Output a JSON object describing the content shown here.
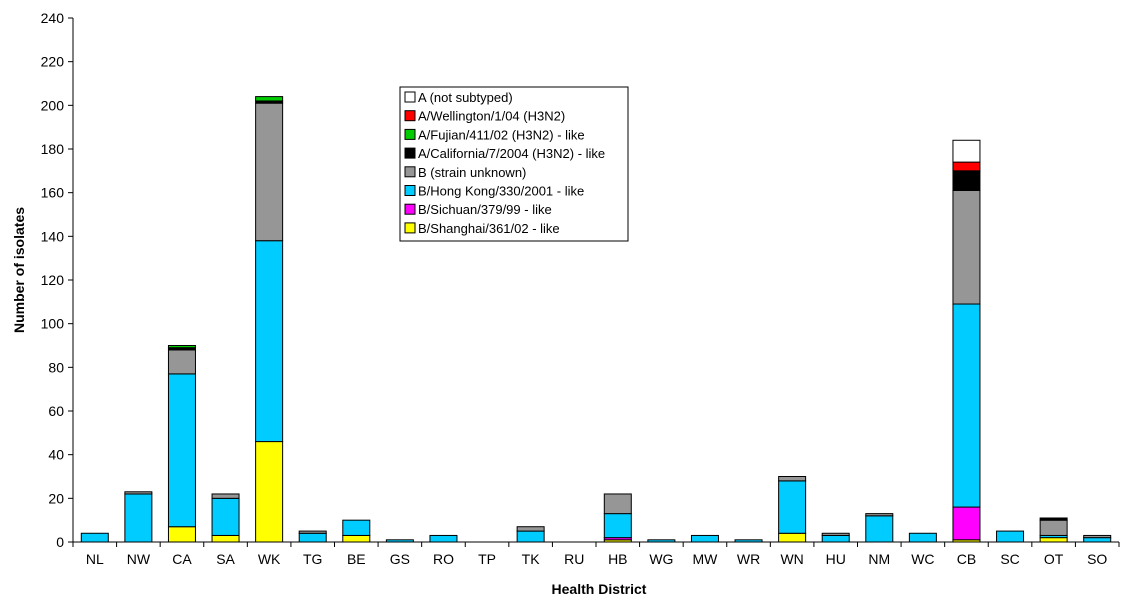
{
  "chart_data": {
    "type": "bar",
    "stacked": true,
    "title": "",
    "xlabel": "Health District",
    "ylabel": "Number of isolates",
    "ylim": [
      0,
      240
    ],
    "ytick_step": 20,
    "grid": false,
    "legend_position": "top-center",
    "categories": [
      "NL",
      "NW",
      "CA",
      "SA",
      "WK",
      "TG",
      "BE",
      "GS",
      "RO",
      "TP",
      "TK",
      "RU",
      "HB",
      "WG",
      "MW",
      "WR",
      "WN",
      "HU",
      "NM",
      "WC",
      "CB",
      "SC",
      "OT",
      "SO"
    ],
    "series": [
      {
        "name": "B/Shanghai/361/02 - like",
        "color": "#ffff00",
        "values": [
          0,
          0,
          7,
          3,
          46,
          0,
          3,
          0,
          0,
          0,
          0,
          0,
          1,
          0,
          0,
          0,
          4,
          0,
          0,
          0,
          1,
          0,
          2,
          0
        ]
      },
      {
        "name": "B/Sichuan/379/99 - like",
        "color": "#ff00ff",
        "values": [
          0,
          0,
          0,
          0,
          0,
          0,
          0,
          0,
          0,
          0,
          0,
          0,
          1,
          0,
          0,
          0,
          0,
          0,
          0,
          0,
          15,
          0,
          0,
          0
        ]
      },
      {
        "name": "B/Hong Kong/330/2001 - like",
        "color": "#00ccff",
        "values": [
          4,
          22,
          70,
          17,
          92,
          4,
          7,
          1,
          3,
          0,
          5,
          0,
          11,
          1,
          3,
          1,
          24,
          3,
          12,
          4,
          93,
          5,
          1,
          2
        ]
      },
      {
        "name": "B (strain unknown)",
        "color": "#969696",
        "values": [
          0,
          1,
          11,
          2,
          63,
          1,
          0,
          0,
          0,
          0,
          2,
          0,
          9,
          0,
          0,
          0,
          2,
          1,
          1,
          0,
          52,
          0,
          7,
          1
        ]
      },
      {
        "name": "A/California/7/2004 (H3N2) - like",
        "color": "#000000",
        "values": [
          0,
          0,
          1,
          0,
          1,
          0,
          0,
          0,
          0,
          0,
          0,
          0,
          0,
          0,
          0,
          0,
          0,
          0,
          0,
          0,
          9,
          0,
          1,
          0
        ]
      },
      {
        "name": "A/Fujian/411/02 (H3N2) - like",
        "color": "#00cc00",
        "values": [
          0,
          0,
          1,
          0,
          2,
          0,
          0,
          0,
          0,
          0,
          0,
          0,
          0,
          0,
          0,
          0,
          0,
          0,
          0,
          0,
          0,
          0,
          0,
          0
        ]
      },
      {
        "name": "A/Wellington/1/04 (H3N2)",
        "color": "#ff0000",
        "values": [
          0,
          0,
          0,
          0,
          0,
          0,
          0,
          0,
          0,
          0,
          0,
          0,
          0,
          0,
          0,
          0,
          0,
          0,
          0,
          0,
          4,
          0,
          0,
          0
        ]
      },
      {
        "name": "A (not subtyped)",
        "color": "#ffffff",
        "values": [
          0,
          0,
          0,
          0,
          0,
          0,
          0,
          0,
          0,
          0,
          0,
          0,
          0,
          0,
          0,
          0,
          0,
          0,
          0,
          0,
          10,
          0,
          0,
          0
        ]
      }
    ]
  }
}
